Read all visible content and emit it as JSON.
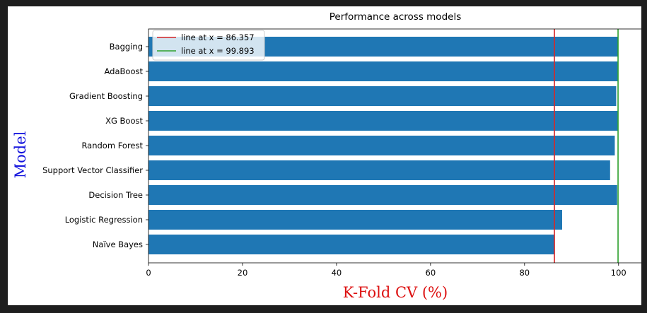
{
  "chart_data": {
    "type": "bar",
    "orientation": "horizontal",
    "title": "Performance across models",
    "xlabel": "K-Fold CV (%)",
    "ylabel": "Model",
    "xlim": [
      0,
      105
    ],
    "xticks": [
      0,
      20,
      40,
      60,
      80,
      100
    ],
    "categories": [
      "Bagging",
      "AdaBoost",
      "Gradient Boosting",
      "XG Boost",
      "Random Forest",
      "Support Vector Classifier",
      "Decision Tree",
      "Logistic Regression",
      "Naïve Bayes"
    ],
    "values": [
      99.9,
      99.8,
      99.5,
      99.8,
      99.2,
      98.2,
      99.7,
      88.0,
      86.357
    ],
    "bar_color": "#1f77b4",
    "reference_lines": [
      {
        "label": "line at x = 86.357",
        "x": 86.357,
        "color": "#d62728"
      },
      {
        "label": "line at x = 99.893",
        "x": 99.893,
        "color": "#2ca02c"
      }
    ],
    "legend_position": "top-left",
    "grid": false,
    "xlabel_color": "#dd1111",
    "ylabel_color": "#1515dd"
  }
}
